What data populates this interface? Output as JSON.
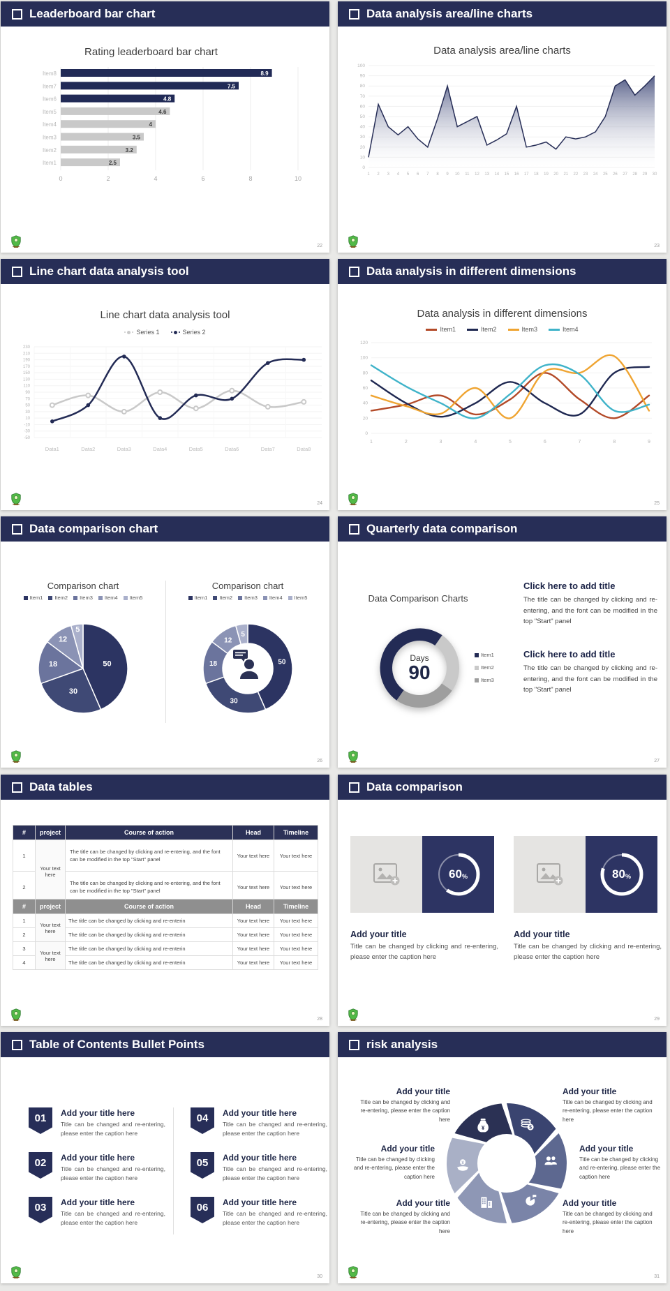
{
  "app": {
    "background": "#e9e9e7",
    "accent_navy": "#272e57"
  },
  "slides": [
    {
      "header": "Leaderboard bar chart",
      "page": "22",
      "chart_title": "Rating leaderboard bar chart"
    },
    {
      "header": "Data analysis area/line charts",
      "page": "23",
      "chart_title": "Data analysis area/line charts"
    },
    {
      "header": "Line chart data analysis tool",
      "page": "24",
      "chart_title": "Line chart data analysis tool"
    },
    {
      "header": "Data analysis in different dimensions",
      "page": "25",
      "chart_title": "Data analysis in different dimensions"
    },
    {
      "header": "Data comparison chart",
      "page": "26",
      "charts": [
        {
          "title": "Comparison chart"
        },
        {
          "title": "Comparison chart"
        }
      ]
    },
    {
      "header": "Quarterly data comparison",
      "page": "27",
      "label": "Data Comparison Charts",
      "center_top": "Days",
      "center_value": "90",
      "blocks": [
        {
          "title": "Click here to add title",
          "body": "The title can be changed by clicking and re-entering, and the font can be modified in the top \"Start\" panel"
        },
        {
          "title": "Click here to add title",
          "body": "The title can be changed by clicking and re-entering, and the font can be modified in the top \"Start\" panel"
        }
      ]
    },
    {
      "header": "Data tables",
      "page": "28",
      "table1": {
        "headers": [
          "#",
          "project",
          "Course of action",
          "Head",
          "Timeline"
        ],
        "rows": [
          {
            "num": "1",
            "project": "Your text here",
            "action": "The title can be changed by clicking and re-entering, and the font can be modified in the top \"Start\" panel",
            "head": "Your text here",
            "timeline": "Your text here"
          },
          {
            "num": "2",
            "action": "The title can be changed by clicking and re-entering, and the font can be modified in the top \"Start\" panel",
            "head": "Your text here",
            "timeline": "Your text here"
          }
        ]
      },
      "table2": {
        "headers": [
          "#",
          "project",
          "Course of action",
          "Head",
          "Timeline"
        ],
        "rows": [
          {
            "num": "1",
            "project": "Your text here",
            "action": "The title can be changed by clicking and re-enterin",
            "head": "Your text here",
            "timeline": "Your text here"
          },
          {
            "num": "2",
            "action": "The title can be changed by clicking and re-enterin",
            "head": "Your text here",
            "timeline": "Your text here"
          },
          {
            "num": "3",
            "project": "Your text here",
            "action": "The title can be changed by clicking and re-enterin",
            "head": "Your text here",
            "timeline": "Your text here"
          },
          {
            "num": "4",
            "action": "The title can be changed by clicking and re-enterin",
            "head": "Your text here",
            "timeline": "Your text here"
          }
        ]
      }
    },
    {
      "header": "Data comparison",
      "page": "29",
      "unit": "%",
      "cards": [
        {
          "percent": 60,
          "percent_label": "60",
          "title": "Add your title",
          "caption": "Title can be changed by clicking and re-entering, please enter the caption here"
        },
        {
          "percent": 80,
          "percent_label": "80",
          "title": "Add your title",
          "caption": "Title can be changed by clicking and re-entering, please enter the caption here"
        }
      ]
    },
    {
      "header": "Table of Contents Bullet Points",
      "page": "30",
      "items": [
        {
          "num": "01",
          "title": "Add your title here",
          "caption": "Title can be changed and re-entering, please enter the caption here"
        },
        {
          "num": "02",
          "title": "Add your title here",
          "caption": "Title can be changed and re-entering, please enter the caption here"
        },
        {
          "num": "03",
          "title": "Add your title here",
          "caption": "Title can be changed and re-entering, please enter the caption here"
        },
        {
          "num": "04",
          "title": "Add your title here",
          "caption": "Title can be changed and re-entering, please enter the caption here"
        },
        {
          "num": "05",
          "title": "Add your title here",
          "caption": "Title can be changed and re-entering, please enter the caption here"
        },
        {
          "num": "06",
          "title": "Add your title here",
          "caption": "Title can be changed and re-entering, please enter the caption here"
        }
      ]
    },
    {
      "header": "risk analysis",
      "page": "31",
      "icons": [
        "money-bag-icon",
        "coins-icon",
        "people-icon",
        "pie-chart-icon",
        "building-icon",
        "hand-coin-icon"
      ],
      "items": [
        {
          "title": "Add your title",
          "caption": "Title can be changed by clicking and re-entering, please enter the caption here"
        },
        {
          "title": "Add your title",
          "caption": "Title can be changed by clicking and re-entering, please enter the caption here"
        },
        {
          "title": "Add your title",
          "caption": "Title can be changed by clicking and re-entering, please enter the caption here"
        },
        {
          "title": "Add your title",
          "caption": "Title can be changed by clicking and re-entering, please enter the caption here"
        },
        {
          "title": "Add your title",
          "caption": "Title can be changed by clicking and re-entering, please enter the caption here"
        },
        {
          "title": "Add your title",
          "caption": "Title can be changed by clicking and re-entering, please enter the caption here"
        }
      ]
    }
  ],
  "chart_data": [
    {
      "id": "leaderboard",
      "type": "bar",
      "orientation": "horizontal",
      "title": "Rating leaderboard bar chart",
      "categories": [
        "Item1",
        "Item2",
        "Item3",
        "Item4",
        "Item5",
        "Item6",
        "Item7",
        "Item8"
      ],
      "values": [
        2.5,
        3.2,
        3.5,
        4,
        4.6,
        4.8,
        7.5,
        8.9
      ],
      "xlim": [
        0,
        10
      ],
      "xticks": [
        0,
        2,
        4,
        6,
        8,
        10
      ],
      "highlight_top": 3,
      "bar_color": "#212a56",
      "bar_color_secondary": "#c9c9c9"
    },
    {
      "id": "area",
      "type": "area",
      "title": "Data analysis area/line charts",
      "x": [
        1,
        2,
        3,
        4,
        5,
        6,
        7,
        8,
        9,
        10,
        11,
        12,
        13,
        14,
        15,
        16,
        17,
        18,
        19,
        20,
        21,
        22,
        23,
        24,
        25,
        26,
        27,
        28,
        29,
        30
      ],
      "values": [
        10,
        62,
        40,
        32,
        40,
        28,
        20,
        48,
        80,
        40,
        45,
        50,
        22,
        27,
        33,
        60,
        20,
        22,
        25,
        18,
        30,
        28,
        30,
        35,
        50,
        80,
        86,
        71,
        80,
        90
      ],
      "ylim": [
        0,
        100
      ],
      "ytick_step": 10,
      "line_color": "#272e57",
      "fill_color": "#4c5581"
    },
    {
      "id": "line2",
      "type": "line",
      "title": "Line chart data analysis tool",
      "categories": [
        "Data1",
        "Data2",
        "Data3",
        "Data4",
        "Data5",
        "Data6",
        "Data7",
        "Data8"
      ],
      "ylim": [
        -50,
        230
      ],
      "ytick_step": 20,
      "series": [
        {
          "name": "Series 1",
          "color": "#c9c9c9",
          "marker": "ring",
          "values": [
            50,
            80,
            30,
            90,
            40,
            95,
            45,
            60
          ]
        },
        {
          "name": "Series 2",
          "color": "#232b55",
          "marker": "dot",
          "values": [
            0,
            50,
            200,
            10,
            80,
            70,
            180,
            190
          ]
        }
      ]
    },
    {
      "id": "line4",
      "type": "line",
      "title": "Data analysis in different dimensions",
      "x": [
        1,
        2,
        3,
        4,
        5,
        6,
        7,
        8,
        9
      ],
      "ylim": [
        0,
        120
      ],
      "ytick_step": 20,
      "series": [
        {
          "name": "Item1",
          "color": "#b34a28",
          "values": [
            30,
            38,
            50,
            25,
            45,
            80,
            45,
            20,
            50
          ]
        },
        {
          "name": "Item2",
          "color": "#1f2851",
          "values": [
            70,
            40,
            22,
            40,
            68,
            40,
            25,
            80,
            88
          ]
        },
        {
          "name": "Item3",
          "color": "#efa431",
          "values": [
            50,
            36,
            26,
            60,
            20,
            82,
            80,
            102,
            30
          ]
        },
        {
          "name": "Item4",
          "color": "#3fb3c9",
          "values": [
            90,
            62,
            40,
            20,
            52,
            90,
            78,
            30,
            38
          ]
        }
      ]
    },
    {
      "id": "pie",
      "type": "pie",
      "title": "Comparison chart",
      "labels": [
        "Item1",
        "Item2",
        "Item3",
        "Item4",
        "Item5"
      ],
      "values": [
        50,
        30,
        18,
        12,
        5
      ],
      "colors": [
        "#2c3462",
        "#3f4975",
        "#6b749d",
        "#8b93b5",
        "#aab0cb"
      ]
    },
    {
      "id": "gauge",
      "type": "donut",
      "center_label": "Days",
      "center_value": 90,
      "start_angle": -145,
      "segments": [
        {
          "label": "Item1",
          "value": 50,
          "color": "#232b55"
        },
        {
          "label": "Item2",
          "value": 25,
          "color": "#c9c9c9"
        },
        {
          "label": "Item3",
          "value": 25,
          "color": "#9e9e9e"
        }
      ]
    },
    {
      "id": "progress",
      "type": "donut",
      "values": [
        60,
        80
      ],
      "unit": "%",
      "ring_color": "#ffffff"
    }
  ]
}
